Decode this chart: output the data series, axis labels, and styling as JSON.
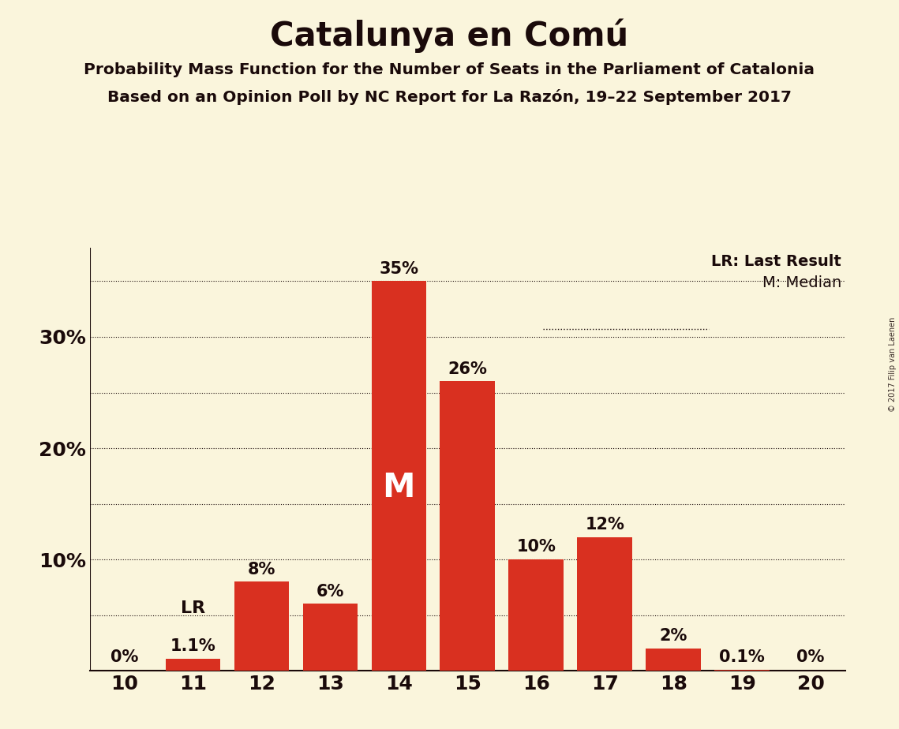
{
  "title": "Catalunya en Comú",
  "subtitle1": "Probability Mass Function for the Number of Seats in the Parliament of Catalonia",
  "subtitle2": "Based on an Opinion Poll by NC Report for La Razón, 19–22 September 2017",
  "copyright": "© 2017 Filip van Laenen",
  "categories": [
    10,
    11,
    12,
    13,
    14,
    15,
    16,
    17,
    18,
    19,
    20
  ],
  "values": [
    0.0,
    1.1,
    8.0,
    6.0,
    35.0,
    26.0,
    10.0,
    12.0,
    2.0,
    0.1,
    0.0
  ],
  "bar_color": "#D93020",
  "background_color": "#FAF5DC",
  "text_color": "#1A0A0A",
  "bar_labels": [
    "0%",
    "1.1%",
    "8%",
    "6%",
    "35%",
    "26%",
    "10%",
    "12%",
    "2%",
    "0.1%",
    "0%"
  ],
  "lr_bar_index": 1,
  "median_bar_index": 4,
  "ylim": [
    0,
    38
  ],
  "yticks": [
    0,
    5,
    10,
    15,
    20,
    25,
    30,
    35
  ],
  "ytick_labels": [
    "",
    "",
    "10%",
    "",
    "20%",
    "",
    "30%",
    ""
  ],
  "legend_lr": "LR: Last Result",
  "legend_m": "M: Median",
  "title_fontsize": 30,
  "subtitle_fontsize": 14.5,
  "label_fontsize": 15,
  "axis_fontsize": 18,
  "gridline_positions": [
    5,
    10,
    15,
    20,
    25,
    30,
    35
  ]
}
